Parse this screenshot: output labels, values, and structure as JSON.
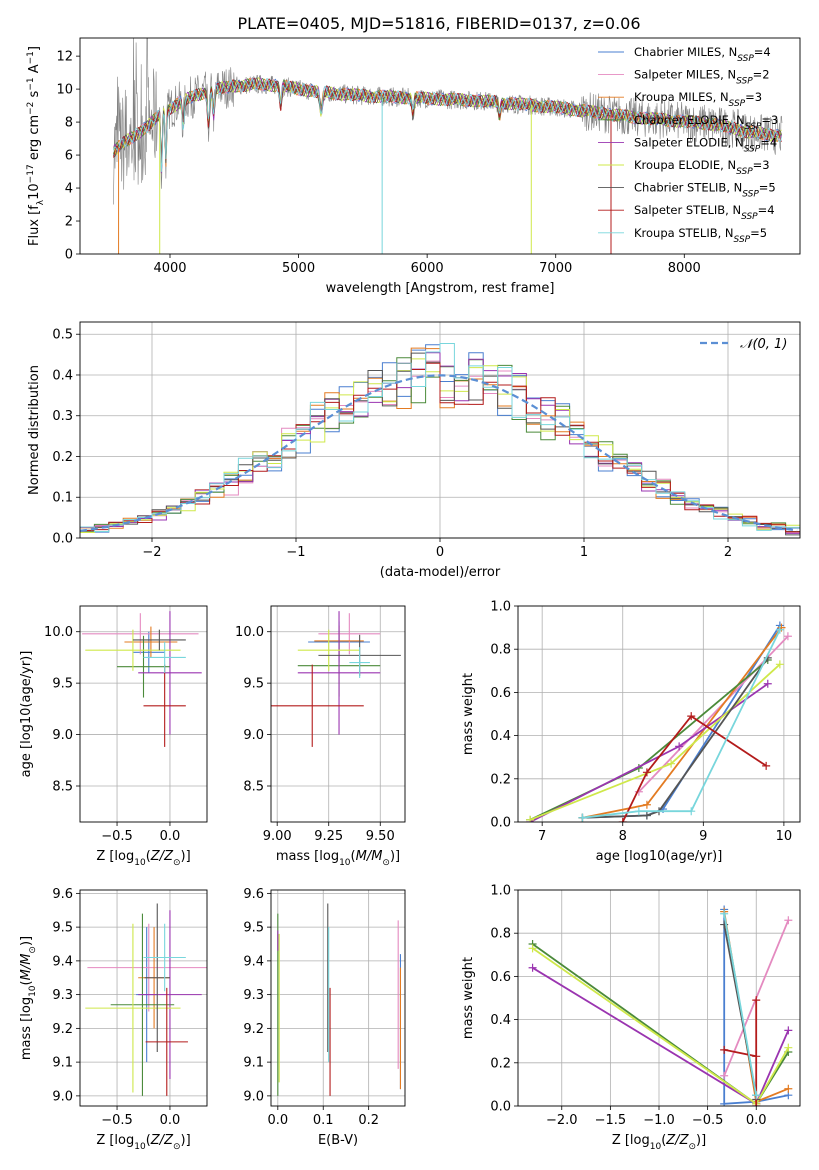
{
  "figure_title": "PLATE=0405, MJD=51816, FIBERID=0137, z=0.06",
  "colors": {
    "chabrier_miles": "#4a7fd0",
    "salpeter_miles": "#e48ac0",
    "kroupa_miles": "#e37b22",
    "chabrier_elodie": "#4b8a3a",
    "salpeter_elodie": "#9a34b0",
    "kroupa_elodie": "#cfe84a",
    "chabrier_stelib": "#555555",
    "salpeter_stelib": "#b31b1b",
    "kroupa_stelib": "#78d6dc",
    "gauss": "#5b8fd4",
    "data": "#808080"
  },
  "chart_data": [
    {
      "id": "spectrum",
      "type": "line",
      "title": "PLATE=0405, MJD=51816, FIBERID=0137, z=0.06",
      "xlabel": "wavelength [Angstrom, rest frame]",
      "ylabel_parts": [
        "Flux [f",
        "λ",
        "10",
        "−17",
        " erg cm",
        "−2",
        " s",
        "−1",
        " A",
        "−1",
        "]"
      ],
      "xlim": [
        3300,
        8900
      ],
      "ylim": [
        0,
        13.1
      ],
      "xticks": [
        4000,
        5000,
        6000,
        7000,
        8000
      ],
      "yticks": [
        0,
        2,
        4,
        6,
        8,
        10,
        12
      ],
      "legend_position": "top-right",
      "series": [
        {
          "key": "chabrier_miles",
          "label_main": "Chabrier MILES, N",
          "label_sub": "SSP",
          "label_end": "=4"
        },
        {
          "key": "salpeter_miles",
          "label_main": "Salpeter MILES, N",
          "label_sub": "SSP",
          "label_end": "=2"
        },
        {
          "key": "kroupa_miles",
          "label_main": "Kroupa MILES, N",
          "label_sub": "SSP",
          "label_end": "=3"
        },
        {
          "key": "chabrier_elodie",
          "label_main": "Chabrier ELODIE, N",
          "label_sub": "SSP",
          "label_end": "=3"
        },
        {
          "key": "salpeter_elodie",
          "label_main": "Salpeter ELODIE, N",
          "label_sub": "SSP",
          "label_end": "=4"
        },
        {
          "key": "kroupa_elodie",
          "label_main": "Kroupa ELODIE, N",
          "label_sub": "SSP",
          "label_end": "=3"
        },
        {
          "key": "chabrier_stelib",
          "label_main": "Chabrier STELIB, N",
          "label_sub": "SSP",
          "label_end": "=5"
        },
        {
          "key": "salpeter_stelib",
          "label_main": "Salpeter STELIB, N",
          "label_sub": "SSP",
          "label_end": "=4"
        },
        {
          "key": "kroupa_stelib",
          "label_main": "Kroupa STELIB, N",
          "label_sub": "SSP",
          "label_end": "=5"
        }
      ],
      "continuum": [
        [
          3560,
          6.2
        ],
        [
          3650,
          6.8
        ],
        [
          3800,
          7.6
        ],
        [
          3950,
          8.6
        ],
        [
          4100,
          9.3
        ],
        [
          4300,
          9.9
        ],
        [
          4500,
          10.2
        ],
        [
          4700,
          10.3
        ],
        [
          4860,
          10.2
        ],
        [
          5000,
          10.0
        ],
        [
          5200,
          9.8
        ],
        [
          5500,
          9.6
        ],
        [
          5800,
          9.5
        ],
        [
          6100,
          9.4
        ],
        [
          6400,
          9.3
        ],
        [
          6700,
          9.1
        ],
        [
          7000,
          8.9
        ],
        [
          7300,
          8.6
        ],
        [
          7600,
          8.3
        ],
        [
          7900,
          8.1
        ],
        [
          8200,
          7.9
        ],
        [
          8400,
          7.6
        ],
        [
          8500,
          7.4
        ],
        [
          8700,
          7.2
        ]
      ]
    },
    {
      "id": "residuals",
      "type": "line",
      "xlabel": "(data-model)/error",
      "ylabel": "Normed distribution",
      "xlim": [
        -2.5,
        2.5
      ],
      "ylim": [
        0,
        0.53
      ],
      "xticks": [
        -2,
        -1,
        0,
        1,
        2
      ],
      "yticks": [
        0.0,
        0.1,
        0.2,
        0.3,
        0.4,
        0.5
      ],
      "grid": true,
      "legend_label": "𝒩(0, 1)",
      "legend_position": "top-right"
    },
    {
      "id": "age_vs_Z",
      "type": "scatter",
      "xlabel_parts": [
        "Z [log",
        "10",
        "(",
        "Z/Z",
        "⊙",
        ")]"
      ],
      "ylabel_parts": [
        "age  [log",
        "10",
        "(",
        "age/yr",
        ")]"
      ],
      "xlim": [
        -0.85,
        0.35
      ],
      "ylim": [
        8.15,
        10.25
      ],
      "xticks": [
        -0.5,
        0.0
      ],
      "yticks": [
        8.5,
        9.0,
        9.5,
        10.0
      ],
      "grid": true,
      "points": [
        {
          "key": "chabrier_miles",
          "x": -0.2,
          "xerr": 0.15,
          "y": 9.8,
          "yerr": 0.2
        },
        {
          "key": "salpeter_miles",
          "x": -0.28,
          "xerr": 0.55,
          "y": 9.98,
          "yerr": 0.2
        },
        {
          "key": "kroupa_miles",
          "x": -0.18,
          "xerr": 0.25,
          "y": 9.9,
          "yerr": 0.15
        },
        {
          "key": "chabrier_elodie",
          "x": -0.25,
          "xerr": 0.25,
          "y": 9.66,
          "yerr": 0.3
        },
        {
          "key": "salpeter_elodie",
          "x": 0.0,
          "xerr": 0.3,
          "y": 9.6,
          "yerr": 0.6
        },
        {
          "key": "kroupa_elodie",
          "x": -0.35,
          "xerr": 0.45,
          "y": 9.82,
          "yerr": 0.2
        },
        {
          "key": "chabrier_stelib",
          "x": -0.1,
          "xerr": 0.25,
          "y": 9.92,
          "yerr": 0.1
        },
        {
          "key": "salpeter_stelib",
          "x": -0.05,
          "xerr": 0.2,
          "y": 9.28,
          "yerr": 0.4
        },
        {
          "key": "kroupa_stelib",
          "x": -0.05,
          "xerr": 0.2,
          "y": 9.75,
          "yerr": 0.15
        }
      ]
    },
    {
      "id": "age_vs_mass",
      "type": "scatter",
      "xlabel_parts": [
        "mass [log",
        "10",
        "(",
        "M/M",
        "⊙",
        ")]"
      ],
      "xlim": [
        8.97,
        9.62
      ],
      "ylim": [
        8.15,
        10.25
      ],
      "xticks": [
        9.0,
        9.25,
        9.5
      ],
      "yticks": [
        8.5,
        9.0,
        9.5,
        10.0
      ],
      "grid": true,
      "points": [
        {
          "key": "chabrier_miles",
          "x": 9.3,
          "xerr": 0.15,
          "y": 9.9,
          "yerr": 0.2
        },
        {
          "key": "salpeter_miles",
          "x": 9.35,
          "xerr": 0.15,
          "y": 9.98,
          "yerr": 0.2
        },
        {
          "key": "kroupa_miles",
          "x": 9.3,
          "xerr": 0.12,
          "y": 9.91,
          "yerr": 0.15
        },
        {
          "key": "chabrier_elodie",
          "x": 9.3,
          "xerr": 0.2,
          "y": 9.67,
          "yerr": 0.3
        },
        {
          "key": "salpeter_elodie",
          "x": 9.3,
          "xerr": 0.2,
          "y": 9.6,
          "yerr": 0.6
        },
        {
          "key": "kroupa_elodie",
          "x": 9.25,
          "xerr": 0.15,
          "y": 9.82,
          "yerr": 0.2
        },
        {
          "key": "chabrier_stelib",
          "x": 9.4,
          "xerr": 0.2,
          "y": 9.77,
          "yerr": 0.2
        },
        {
          "key": "salpeter_stelib",
          "x": 9.17,
          "xerr": 0.25,
          "y": 9.28,
          "yerr": 0.4
        },
        {
          "key": "kroupa_stelib",
          "x": 9.4,
          "xerr": 0.05,
          "y": 9.7,
          "yerr": 0.15
        }
      ]
    },
    {
      "id": "mass_weight_vs_age",
      "type": "line",
      "xlabel_parts": [
        "age  [log",
        "10",
        "(",
        "age/yr",
        ")]"
      ],
      "ylabel": "mass weight",
      "xlim": [
        6.7,
        10.2
      ],
      "ylim": [
        0,
        1.0
      ],
      "xticks": [
        7,
        8,
        9,
        10
      ],
      "yticks": [
        0.0,
        0.2,
        0.4,
        0.6,
        0.8,
        1.0
      ],
      "grid": true,
      "series": [
        {
          "key": "chabrier_miles",
          "x": [
            7.5,
            8.3,
            8.5,
            9.95
          ],
          "y": [
            0.02,
            0.03,
            0.06,
            0.91
          ]
        },
        {
          "key": "salpeter_miles",
          "x": [
            8.2,
            10.05
          ],
          "y": [
            0.14,
            0.86
          ]
        },
        {
          "key": "kroupa_miles",
          "x": [
            7.5,
            8.3,
            9.97
          ],
          "y": [
            0.02,
            0.08,
            0.9
          ]
        },
        {
          "key": "chabrier_elodie",
          "x": [
            6.85,
            8.2,
            9.8
          ],
          "y": [
            0.01,
            0.25,
            0.75
          ]
        },
        {
          "key": "salpeter_elodie",
          "x": [
            6.85,
            8.7,
            9.8
          ],
          "y": [
            0.0,
            0.35,
            0.64
          ]
        },
        {
          "key": "kroupa_elodie",
          "x": [
            6.85,
            8.6,
            9.95
          ],
          "y": [
            0.01,
            0.27,
            0.73
          ]
        },
        {
          "key": "chabrier_stelib",
          "x": [
            7.5,
            8.3,
            8.45,
            9.8
          ],
          "y": [
            0.02,
            0.03,
            0.05,
            0.76
          ]
        },
        {
          "key": "salpeter_stelib",
          "x": [
            8.0,
            8.3,
            8.85,
            9.78
          ],
          "y": [
            0.0,
            0.23,
            0.49,
            0.26
          ]
        },
        {
          "key": "kroupa_stelib",
          "x": [
            7.5,
            8.2,
            8.85,
            9.95
          ],
          "y": [
            0.02,
            0.05,
            0.05,
            0.89
          ]
        }
      ]
    },
    {
      "id": "mass_vs_Z",
      "type": "scatter",
      "xlabel_parts": [
        "Z [log",
        "10",
        "(",
        "Z/Z",
        "⊙",
        ")]"
      ],
      "ylabel_parts": [
        "mass [log",
        "10",
        "(",
        "M/M",
        "⊙",
        ")]"
      ],
      "xlim": [
        -0.85,
        0.35
      ],
      "ylim": [
        8.97,
        9.61
      ],
      "xticks": [
        -0.5,
        0.0
      ],
      "yticks": [
        9.0,
        9.1,
        9.2,
        9.3,
        9.4,
        9.5,
        9.6
      ],
      "grid": true,
      "points": [
        {
          "key": "chabrier_miles",
          "x": -0.22,
          "xerr": 0.1,
          "y": 9.3,
          "yerr": 0.2
        },
        {
          "key": "salpeter_miles",
          "x": -0.2,
          "xerr": 0.58,
          "y": 9.38,
          "yerr": 0.13
        },
        {
          "key": "kroupa_miles",
          "x": -0.15,
          "xerr": 0.15,
          "y": 9.35,
          "yerr": 0.15
        },
        {
          "key": "chabrier_elodie",
          "x": -0.26,
          "xerr": 0.3,
          "y": 9.27,
          "yerr": 0.27
        },
        {
          "key": "salpeter_elodie",
          "x": 0.0,
          "xerr": 0.3,
          "y": 9.3,
          "yerr": 0.25
        },
        {
          "key": "kroupa_elodie",
          "x": -0.35,
          "xerr": 0.45,
          "y": 9.26,
          "yerr": 0.25
        },
        {
          "key": "chabrier_stelib",
          "x": -0.12,
          "xerr": 0.12,
          "y": 9.35,
          "yerr": 0.22
        },
        {
          "key": "salpeter_stelib",
          "x": -0.03,
          "xerr": 0.2,
          "y": 9.16,
          "yerr": 0.16
        },
        {
          "key": "kroupa_stelib",
          "x": -0.05,
          "xerr": 0.2,
          "y": 9.41,
          "yerr": 0.1
        }
      ]
    },
    {
      "id": "mass_vs_ebv",
      "type": "scatter",
      "xlabel": "E(B-V)",
      "xlim": [
        -0.015,
        0.28
      ],
      "ylim": [
        8.97,
        9.61
      ],
      "xticks": [
        0.0,
        0.1,
        0.2
      ],
      "yticks": [
        9.0,
        9.1,
        9.2,
        9.3,
        9.4,
        9.5,
        9.6
      ],
      "grid": true,
      "points": [
        {
          "key": "chabrier_miles",
          "x": 0.27,
          "xerr": 0,
          "y": 9.22,
          "yerr": 0.2
        },
        {
          "key": "salpeter_miles",
          "x": 0.265,
          "xerr": 0,
          "y": 9.3,
          "yerr": 0.22
        },
        {
          "key": "kroupa_miles",
          "x": 0.27,
          "xerr": 0,
          "y": 9.2,
          "yerr": 0.18
        },
        {
          "key": "chabrier_elodie",
          "x": 0.0,
          "xerr": 0,
          "y": 9.27,
          "yerr": 0.27
        },
        {
          "key": "salpeter_elodie",
          "x": 0.0,
          "xerr": 0,
          "y": 9.46,
          "yerr": 0.03
        },
        {
          "key": "kroupa_elodie",
          "x": 0.003,
          "xerr": 0,
          "y": 9.26,
          "yerr": 0.22
        },
        {
          "key": "chabrier_stelib",
          "x": 0.11,
          "xerr": 0,
          "y": 9.35,
          "yerr": 0.22
        },
        {
          "key": "salpeter_stelib",
          "x": 0.115,
          "xerr": 0,
          "y": 9.16,
          "yerr": 0.16
        },
        {
          "key": "kroupa_stelib",
          "x": 0.112,
          "xerr": 0,
          "y": 9.3,
          "yerr": 0.2
        }
      ]
    },
    {
      "id": "mass_weight_vs_Z",
      "type": "line",
      "xlabel_parts": [
        "Z [log",
        "10",
        "(",
        "Z/Z",
        "⊙",
        ")]"
      ],
      "ylabel": "mass weight",
      "xlim": [
        -2.45,
        0.45
      ],
      "ylim": [
        0,
        1.0
      ],
      "xticks": [
        -2.0,
        -1.5,
        -1.0,
        -0.5,
        0.0
      ],
      "yticks": [
        0.0,
        0.2,
        0.4,
        0.6,
        0.8,
        1.0
      ],
      "grid": true,
      "series": [
        {
          "key": "chabrier_miles",
          "x": [
            -0.33,
            -0.33,
            0.0,
            0.33
          ],
          "y": [
            0.91,
            0.01,
            0.02,
            0.05
          ]
        },
        {
          "key": "salpeter_miles",
          "x": [
            -0.33,
            0.33
          ],
          "y": [
            0.14,
            0.86
          ]
        },
        {
          "key": "kroupa_miles",
          "x": [
            -0.33,
            0.0,
            0.33
          ],
          "y": [
            0.9,
            0.02,
            0.08
          ]
        },
        {
          "key": "chabrier_elodie",
          "x": [
            -2.3,
            0.0,
            0.33
          ],
          "y": [
            0.75,
            0.01,
            0.25
          ]
        },
        {
          "key": "salpeter_elodie",
          "x": [
            -2.3,
            0.0,
            0.33
          ],
          "y": [
            0.64,
            0.01,
            0.35
          ]
        },
        {
          "key": "kroupa_elodie",
          "x": [
            -2.3,
            0.0,
            0.33
          ],
          "y": [
            0.73,
            0.01,
            0.27
          ]
        },
        {
          "key": "chabrier_stelib",
          "x": [
            -0.33,
            0.0,
            0.0
          ],
          "y": [
            0.84,
            0.05,
            0.03
          ]
        },
        {
          "key": "salpeter_stelib",
          "x": [
            -0.33,
            0.0,
            0.0,
            0.0
          ],
          "y": [
            0.26,
            0.23,
            0.49,
            0.0
          ]
        },
        {
          "key": "kroupa_stelib",
          "x": [
            -0.33,
            0.0,
            0.0
          ],
          "y": [
            0.89,
            0.05,
            0.05
          ]
        }
      ]
    }
  ]
}
